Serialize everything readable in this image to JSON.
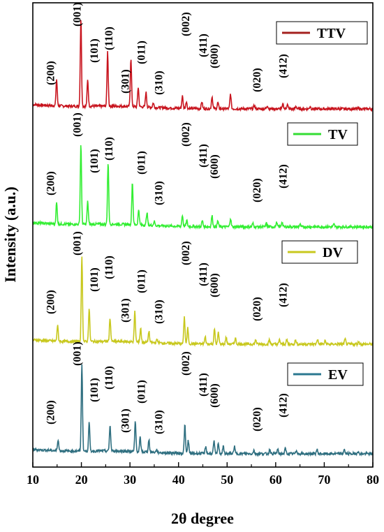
{
  "chart_data": {
    "type": "line",
    "xlabel": "2θ degree",
    "ylabel": "Intensity (a.u.)",
    "xlim": [
      10,
      80
    ],
    "xticks": [
      10,
      20,
      30,
      40,
      50,
      60,
      70,
      80
    ],
    "yticks_shown": false,
    "series": [
      {
        "name": "TTV",
        "color": "#c8141e",
        "legend_color": "#a4201e",
        "peaks": [
          [
            14.9,
            0.3
          ],
          [
            19.9,
            1.0
          ],
          [
            21.3,
            0.3
          ],
          [
            25.4,
            0.62
          ],
          [
            30.2,
            0.55
          ],
          [
            31.7,
            0.22
          ],
          [
            33.3,
            0.17
          ],
          [
            34.8,
            0.05
          ],
          [
            40.8,
            0.14
          ],
          [
            41.6,
            0.08
          ],
          [
            44.8,
            0.08
          ],
          [
            46.9,
            0.14
          ],
          [
            48.1,
            0.07
          ],
          [
            50.7,
            0.17
          ],
          [
            55.6,
            0.04
          ],
          [
            58.3,
            0.04
          ],
          [
            61.5,
            0.05
          ],
          [
            62.4,
            0.05
          ],
          [
            64.2,
            0.03
          ],
          [
            67.1,
            0.03
          ]
        ],
        "annotations": [
          {
            "label": "(200)",
            "x": 13.5
          },
          {
            "label": "(001)",
            "x": 19.0
          },
          {
            "label": "(101)",
            "x": 22.5
          },
          {
            "label": "(110)",
            "x": 25.5
          },
          {
            "label": "(301)",
            "x": 28.9
          },
          {
            "label": "(011)",
            "x": 32.2
          },
          {
            "label": "(310)",
            "x": 35.8
          },
          {
            "label": "(002)",
            "x": 41.3
          },
          {
            "label": "(411)",
            "x": 44.9
          },
          {
            "label": "(600)",
            "x": 47.2
          },
          {
            "label": "(020)",
            "x": 56.0
          },
          {
            "label": "(412)",
            "x": 61.4
          }
        ]
      },
      {
        "name": "TV",
        "color": "#33ee33",
        "legend_color": "#33dd33",
        "peaks": [
          [
            14.9,
            0.25
          ],
          [
            19.9,
            0.94
          ],
          [
            21.3,
            0.27
          ],
          [
            25.5,
            0.72
          ],
          [
            30.5,
            0.5
          ],
          [
            31.8,
            0.18
          ],
          [
            33.5,
            0.15
          ],
          [
            35.0,
            0.05
          ],
          [
            40.8,
            0.13
          ],
          [
            41.7,
            0.07
          ],
          [
            44.9,
            0.07
          ],
          [
            46.9,
            0.13
          ],
          [
            48.1,
            0.07
          ],
          [
            50.7,
            0.1
          ],
          [
            55.3,
            0.04
          ],
          [
            58.1,
            0.04
          ],
          [
            60.2,
            0.05
          ],
          [
            61.3,
            0.06
          ],
          [
            65.0,
            0.03
          ],
          [
            72.0,
            0.03
          ]
        ],
        "annotations": [
          {
            "label": "(200)",
            "x": 13.5
          },
          {
            "label": "(001)",
            "x": 19.0
          },
          {
            "label": "(101)",
            "x": 22.5
          },
          {
            "label": "(110)",
            "x": 25.5
          },
          {
            "label": "(011)",
            "x": 32.2
          },
          {
            "label": "(310)",
            "x": 35.8
          },
          {
            "label": "(002)",
            "x": 41.3
          },
          {
            "label": "(411)",
            "x": 44.9
          },
          {
            "label": "(600)",
            "x": 47.2
          },
          {
            "label": "(020)",
            "x": 56.0
          },
          {
            "label": "(412)",
            "x": 61.4
          }
        ]
      },
      {
        "name": "DV",
        "color": "#c8c81e",
        "legend_color": "#c8c81e",
        "peaks": [
          [
            15.1,
            0.18
          ],
          [
            20.1,
            1.0
          ],
          [
            21.6,
            0.38
          ],
          [
            25.9,
            0.27
          ],
          [
            31.0,
            0.35
          ],
          [
            32.2,
            0.16
          ],
          [
            33.9,
            0.13
          ],
          [
            35.6,
            0.04
          ],
          [
            41.2,
            0.31
          ],
          [
            41.9,
            0.18
          ],
          [
            45.5,
            0.08
          ],
          [
            47.4,
            0.17
          ],
          [
            48.2,
            0.13
          ],
          [
            49.8,
            0.08
          ],
          [
            51.7,
            0.07
          ],
          [
            55.9,
            0.05
          ],
          [
            58.7,
            0.05
          ],
          [
            60.8,
            0.05
          ],
          [
            62.3,
            0.05
          ],
          [
            64.1,
            0.05
          ],
          [
            68.6,
            0.06
          ],
          [
            70.2,
            0.04
          ],
          [
            74.3,
            0.06
          ],
          [
            77.1,
            0.03
          ]
        ],
        "annotations": [
          {
            "label": "(200)",
            "x": 13.5
          },
          {
            "label": "(001)",
            "x": 19.0
          },
          {
            "label": "(101)",
            "x": 22.5
          },
          {
            "label": "(110)",
            "x": 25.5
          },
          {
            "label": "(301)",
            "x": 28.9
          },
          {
            "label": "(011)",
            "x": 32.2
          },
          {
            "label": "(310)",
            "x": 35.8
          },
          {
            "label": "(002)",
            "x": 41.3
          },
          {
            "label": "(411)",
            "x": 44.9
          },
          {
            "label": "(600)",
            "x": 47.2
          },
          {
            "label": "(020)",
            "x": 56.0
          },
          {
            "label": "(412)",
            "x": 61.4
          }
        ]
      },
      {
        "name": "EV",
        "color": "#2f6f80",
        "legend_color": "#2b7890",
        "peaks": [
          [
            15.2,
            0.13
          ],
          [
            20.1,
            1.0
          ],
          [
            21.6,
            0.32
          ],
          [
            25.9,
            0.29
          ],
          [
            31.1,
            0.34
          ],
          [
            32.1,
            0.16
          ],
          [
            33.9,
            0.14
          ],
          [
            35.5,
            0.03
          ],
          [
            41.3,
            0.32
          ],
          [
            42.0,
            0.15
          ],
          [
            45.6,
            0.08
          ],
          [
            47.3,
            0.14
          ],
          [
            48.2,
            0.12
          ],
          [
            49.2,
            0.08
          ],
          [
            51.5,
            0.08
          ],
          [
            55.5,
            0.04
          ],
          [
            58.8,
            0.05
          ],
          [
            60.4,
            0.05
          ],
          [
            62.0,
            0.06
          ],
          [
            64.3,
            0.04
          ],
          [
            68.5,
            0.05
          ],
          [
            74.1,
            0.05
          ],
          [
            76.9,
            0.03
          ]
        ],
        "annotations": [
          {
            "label": "(200)",
            "x": 13.5
          },
          {
            "label": "(001)",
            "x": 19.0
          },
          {
            "label": "(101)",
            "x": 22.5
          },
          {
            "label": "(110)",
            "x": 25.5
          },
          {
            "label": "(301)",
            "x": 28.9
          },
          {
            "label": "(011)",
            "x": 32.2
          },
          {
            "label": "(310)",
            "x": 35.8
          },
          {
            "label": "(002)",
            "x": 41.3
          },
          {
            "label": "(411)",
            "x": 44.9
          },
          {
            "label": "(600)",
            "x": 47.2
          },
          {
            "label": "(020)",
            "x": 56.0
          },
          {
            "label": "(412)",
            "x": 61.4
          }
        ]
      }
    ],
    "legend_placement": "top-right of each panel"
  }
}
